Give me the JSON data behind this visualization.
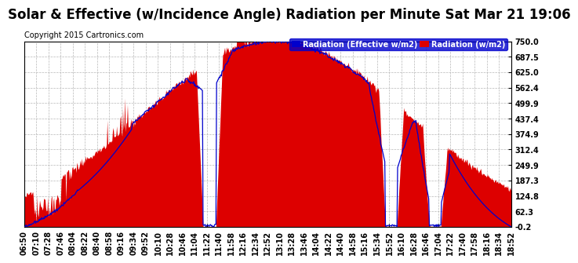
{
  "title": "Solar & Effective (w/Incidence Angle) Radiation per Minute Sat Mar 21 19:06",
  "copyright": "Copyright 2015 Cartronics.com",
  "legend_blue": "Radiation (Effective w/m2)",
  "legend_red": "Radiation (w/m2)",
  "ylim": [
    -0.2,
    750.0
  ],
  "yticks": [
    750.0,
    687.5,
    625.0,
    562.4,
    499.9,
    437.4,
    374.9,
    312.4,
    249.9,
    187.3,
    124.8,
    62.3,
    -0.2
  ],
  "bg_color": "#ffffff",
  "grid_color": "#b0b0b0",
  "fill_color": "#dd0000",
  "line_color": "#0000cc",
  "title_fontsize": 12,
  "copyright_fontsize": 7,
  "tick_fontsize": 7,
  "num_points": 722,
  "xtick_labels": [
    "06:50",
    "07:10",
    "07:28",
    "07:46",
    "08:04",
    "08:22",
    "08:40",
    "08:58",
    "09:16",
    "09:34",
    "09:52",
    "10:10",
    "10:28",
    "10:46",
    "11:04",
    "11:22",
    "11:40",
    "11:58",
    "12:16",
    "12:34",
    "12:52",
    "13:10",
    "13:28",
    "13:46",
    "14:04",
    "14:22",
    "14:40",
    "14:58",
    "15:16",
    "15:34",
    "15:52",
    "16:10",
    "16:28",
    "16:46",
    "17:04",
    "17:22",
    "17:40",
    "17:58",
    "18:16",
    "18:34",
    "18:52"
  ]
}
